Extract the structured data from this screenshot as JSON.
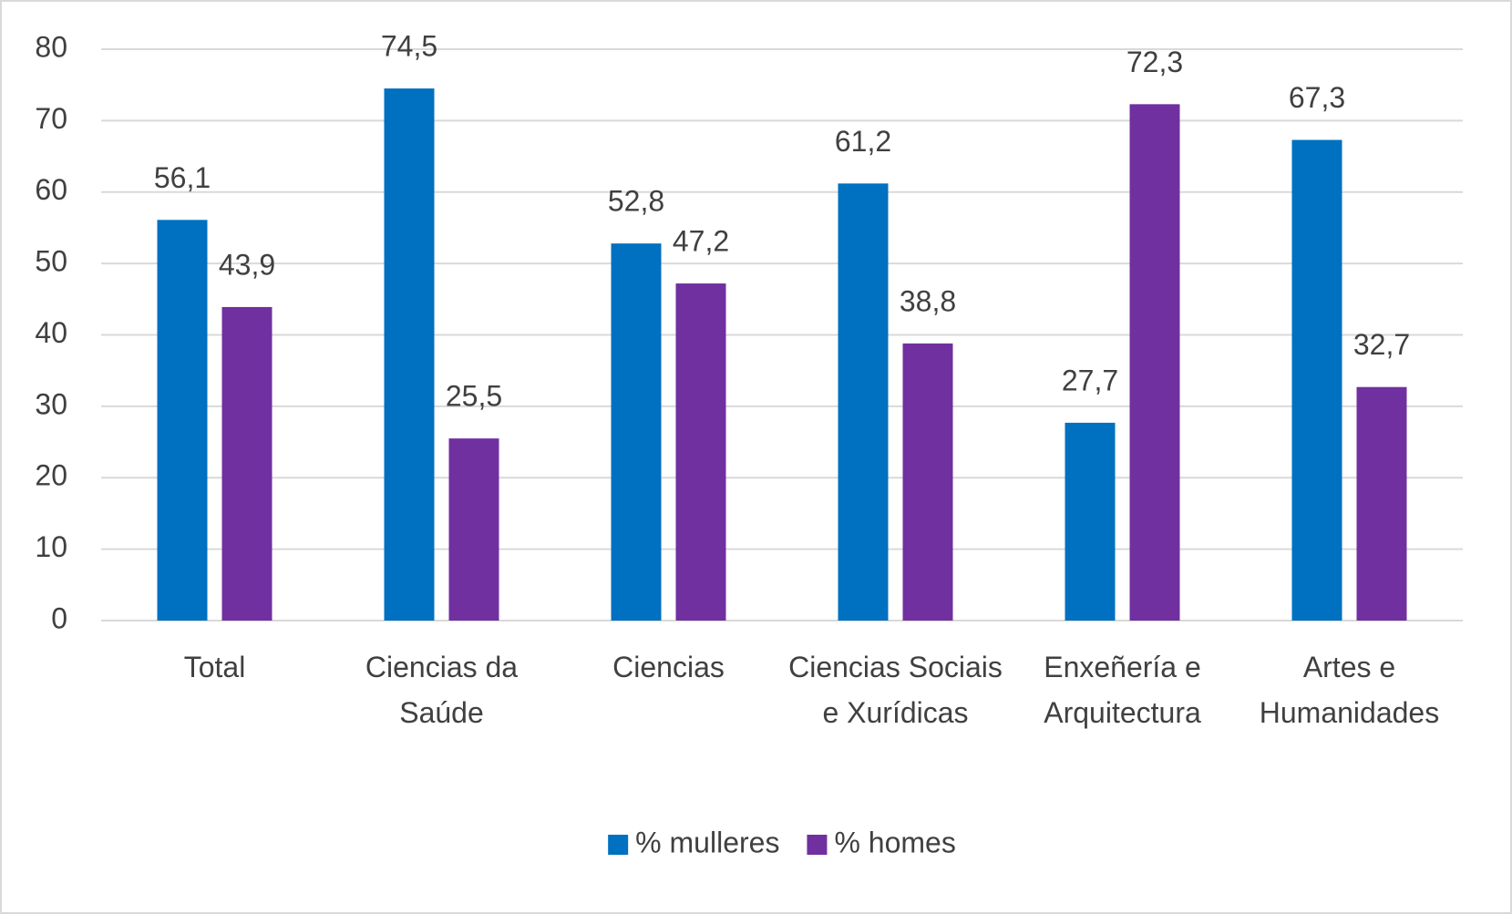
{
  "chart_data": {
    "type": "bar",
    "categories": [
      "Total",
      "Ciencias da Saúde",
      "Ciencias",
      "Ciencias Sociais e Xurídicas",
      "Enxeñería e Arquitectura",
      "Artes e Humanidades"
    ],
    "series": [
      {
        "name": "% mulleres",
        "color": "#0070c0",
        "values": [
          56.1,
          74.5,
          52.8,
          61.2,
          27.7,
          67.3
        ],
        "value_labels": [
          "56,1",
          "74,5",
          "52,8",
          "61,2",
          "27,7",
          "67,3"
        ]
      },
      {
        "name": "% homes",
        "color": "#7030a0",
        "values": [
          43.9,
          25.5,
          47.2,
          38.8,
          72.3,
          32.7
        ],
        "value_labels": [
          "43,9",
          "25,5",
          "47,2",
          "38,8",
          "72,3",
          "32,7"
        ]
      }
    ],
    "ylim": [
      0,
      80
    ],
    "yticks": [
      0,
      10,
      20,
      30,
      40,
      50,
      60,
      70,
      80
    ],
    "grid": true,
    "legend": "bottom"
  }
}
